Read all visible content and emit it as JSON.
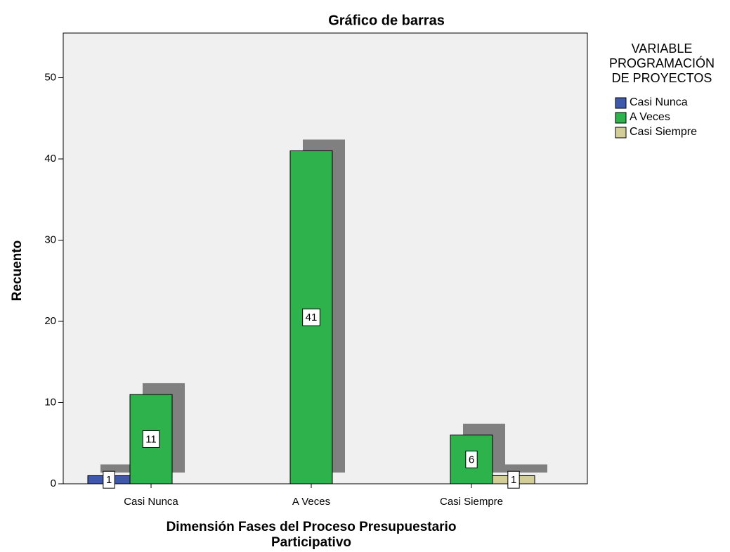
{
  "chart_data": {
    "type": "bar",
    "title": "Gráfico de barras",
    "categories": [
      "Casi Nunca",
      "A Veces",
      "Casi Siempre"
    ],
    "series": [
      {
        "name": "Casi Nunca",
        "color": "#3e58ac",
        "values": [
          1,
          null,
          null
        ]
      },
      {
        "name": "A Veces",
        "color": "#2db24c",
        "values": [
          11,
          41,
          6
        ]
      },
      {
        "name": "Casi Siempre",
        "color": "#d3ce97",
        "values": [
          null,
          null,
          1
        ]
      }
    ],
    "ylim": [
      0,
      55.5
    ],
    "yticks": [
      0,
      10,
      20,
      30,
      40,
      50
    ],
    "y_label": "Recuento",
    "x_label": [
      "Dimensión Fases del Proceso Presupuestario",
      "Participativo"
    ],
    "legend_title": [
      "VARIABLE",
      "PROGRAMACIÓN",
      "DE PROYECTOS"
    ],
    "legend": "right",
    "grid": false,
    "value_labels_shown": true
  }
}
